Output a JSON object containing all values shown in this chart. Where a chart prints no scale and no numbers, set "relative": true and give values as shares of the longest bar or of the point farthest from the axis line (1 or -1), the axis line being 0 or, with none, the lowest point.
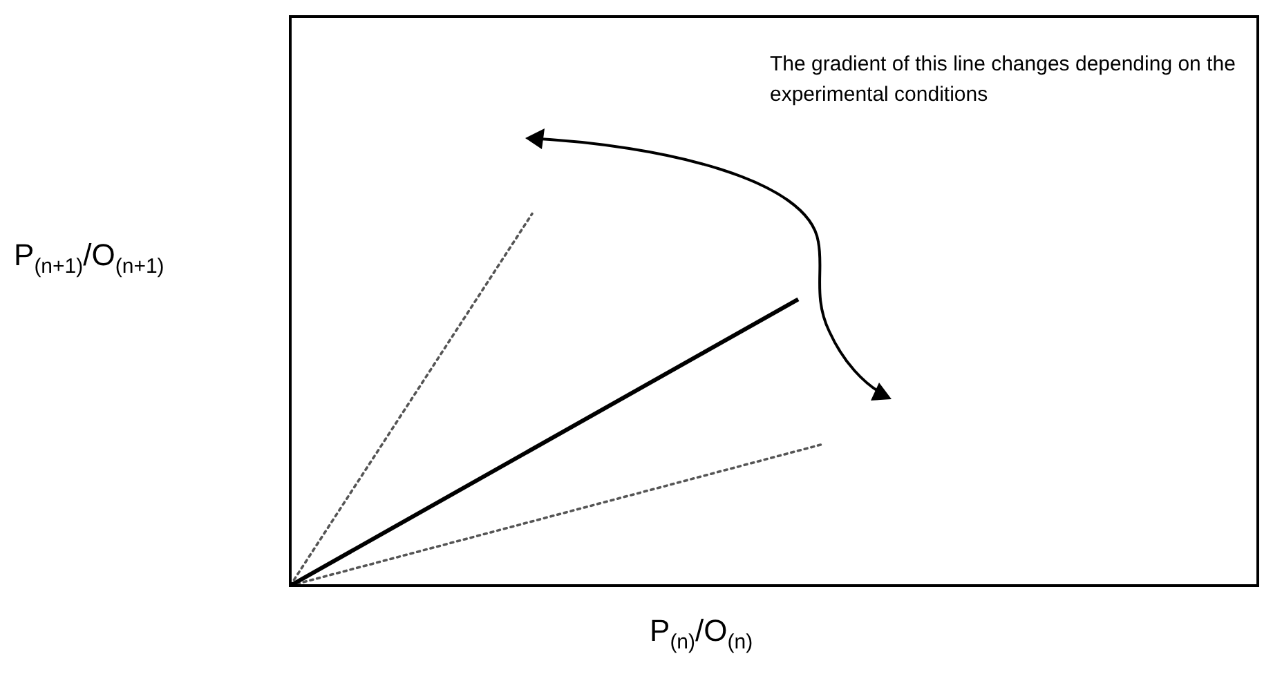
{
  "chart_data": {
    "type": "line",
    "relative": true,
    "xlabel": "P$_{(n)}$/O$_{(n)}$",
    "ylabel": "P$_{(n+1)}$/O$_{(n+1)}$",
    "tick_labels": false,
    "grid": false,
    "legend": false,
    "marker": "none",
    "annotations": [
      "The gradient of this line changes depending on the experimental conditions"
    ],
    "categories": [
      null,
      null,
      null,
      null,
      null,
      null,
      null,
      null,
      null,
      null,
      null,
      null,
      null,
      null,
      null,
      null,
      null,
      null,
      null,
      null,
      null,
      null,
      null,
      null,
      null,
      null,
      null,
      null,
      null,
      null,
      null,
      null,
      null,
      null,
      null,
      null,
      null,
      null,
      null,
      null,
      null
    ],
    "series": [
      {
        "color": "#000000",
        "line_style": "solid",
        "values": [
          0,
          null,
          null,
          null,
          null,
          null,
          null,
          null,
          null,
          null,
          null,
          null,
          null,
          null,
          null,
          null,
          null,
          null,
          null,
          null,
          null,
          0.77,
          null,
          null,
          null,
          null,
          null,
          null,
          null,
          null,
          null,
          null,
          null,
          null,
          null,
          null,
          null,
          null,
          null,
          null,
          null
        ]
      },
      {
        "color": "#555555",
        "line_style": "dotted",
        "values": [
          0,
          null,
          null,
          null,
          null,
          null,
          null,
          null,
          null,
          null,
          1,
          null,
          null,
          null,
          null,
          null,
          null,
          null,
          null,
          null,
          null,
          null,
          null,
          null,
          null,
          null,
          null,
          null,
          null,
          null,
          null,
          null,
          null,
          null,
          null,
          null,
          null,
          null,
          null,
          null,
          null
        ]
      },
      {
        "color": "#555555",
        "line_style": "dotted",
        "values": [
          0,
          null,
          null,
          null,
          null,
          null,
          null,
          null,
          null,
          null,
          null,
          null,
          null,
          null,
          null,
          null,
          null,
          null,
          null,
          null,
          null,
          null,
          0.38,
          null,
          null,
          null,
          null,
          null,
          null,
          null,
          null,
          null,
          null,
          null,
          null,
          null,
          null,
          null,
          null,
          null,
          null
        ]
      }
    ]
  }
}
